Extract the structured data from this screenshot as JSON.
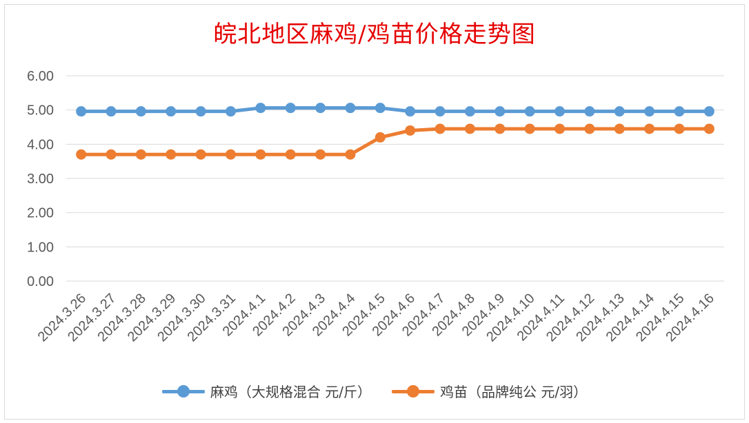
{
  "chart_data": {
    "type": "line",
    "title": "皖北地区麻鸡/鸡苗价格走势图",
    "categories": [
      "2024.3.26",
      "2024.3.27",
      "2024.3.28",
      "2024.3.29",
      "2024.3.30",
      "2024.3.31",
      "2024.4.1",
      "2024.4.2",
      "2024.4.3",
      "2024.4.4",
      "2024.4.5",
      "2024.4.6",
      "2024.4.7",
      "2024.4.8",
      "2024.4.9",
      "2024.4.10",
      "2024.4.11",
      "2024.4.12",
      "2024.4.13",
      "2024.4.14",
      "2024.4.15",
      "2024.4.16"
    ],
    "series": [
      {
        "name": "麻鸡（大规格混合 元/斤）",
        "color": "#5b9bd5",
        "values": [
          4.96,
          4.96,
          4.96,
          4.96,
          4.96,
          4.96,
          5.06,
          5.06,
          5.06,
          5.06,
          5.06,
          4.96,
          4.96,
          4.96,
          4.96,
          4.96,
          4.96,
          4.96,
          4.96,
          4.96,
          4.96,
          4.96
        ]
      },
      {
        "name": "鸡苗（品牌纯公 元/羽）",
        "color": "#ed7d31",
        "values": [
          3.7,
          3.7,
          3.7,
          3.7,
          3.7,
          3.7,
          3.7,
          3.7,
          3.7,
          3.7,
          4.2,
          4.4,
          4.45,
          4.45,
          4.45,
          4.45,
          4.45,
          4.45,
          4.45,
          4.45,
          4.45,
          4.45
        ]
      }
    ],
    "yticks": [
      "0.00",
      "1.00",
      "2.00",
      "3.00",
      "4.00",
      "5.00",
      "6.00"
    ],
    "ylim": [
      0,
      6
    ],
    "grid": true,
    "legend_position": "bottom",
    "title_color": "#e60000"
  }
}
